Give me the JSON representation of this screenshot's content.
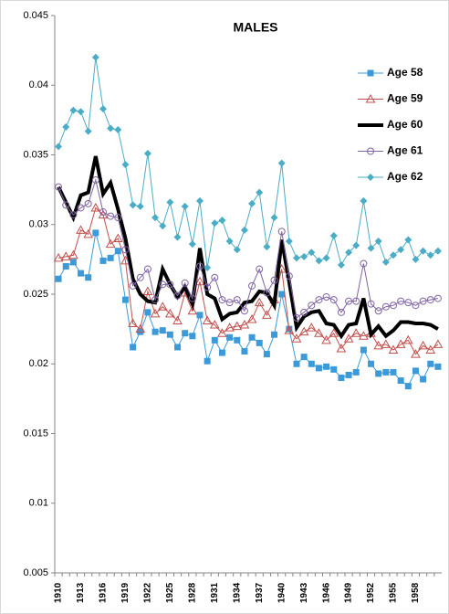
{
  "chart_data": {
    "type": "line",
    "title": "MALES",
    "categories": [
      "1910",
      null,
      null,
      "1913",
      null,
      null,
      "1916",
      null,
      null,
      "1919",
      null,
      null,
      "1922",
      null,
      null,
      "1925",
      null,
      null,
      "1928",
      null,
      null,
      "1931",
      null,
      null,
      "1934",
      null,
      null,
      "1937",
      null,
      null,
      "1940",
      null,
      null,
      "1943",
      null,
      null,
      "1946",
      null,
      null,
      "1949",
      null,
      null,
      "1952",
      null,
      null,
      "1955",
      null,
      null,
      "1958",
      null,
      null,
      null
    ],
    "ylim": [
      0.005,
      0.045
    ],
    "yticks": [
      0.005,
      0.01,
      0.015,
      0.02,
      0.025,
      0.03,
      0.035,
      0.04,
      0.045
    ],
    "series": [
      {
        "name": "Age 58",
        "color": "#3c9ad8",
        "marker": "square",
        "line_width": 1,
        "values": [
          0.0261,
          0.027,
          0.0273,
          0.0265,
          0.0262,
          0.0294,
          0.0274,
          0.0276,
          0.0281,
          0.0246,
          0.0212,
          0.0223,
          0.0237,
          0.0223,
          0.0224,
          0.0221,
          0.0212,
          0.0222,
          0.022,
          0.0235,
          0.0202,
          0.0217,
          0.0208,
          0.0219,
          0.0217,
          0.0209,
          0.0219,
          0.0215,
          0.0207,
          0.0221,
          0.025,
          0.0225,
          0.02,
          0.0205,
          0.02,
          0.0197,
          0.0198,
          0.0196,
          0.019,
          0.0192,
          0.0194,
          0.021,
          0.02,
          0.0193,
          0.0194,
          0.0194,
          0.0188,
          0.0184,
          0.0195,
          0.0189,
          0.02,
          0.0198
        ]
      },
      {
        "name": "Age 59",
        "color": "#c0504d",
        "marker": "triangle",
        "line_width": 1,
        "values": [
          0.0276,
          0.0277,
          0.0278,
          0.0296,
          0.0293,
          0.0312,
          0.0307,
          0.0286,
          0.029,
          0.0274,
          0.0229,
          0.0225,
          0.0252,
          0.0236,
          0.0241,
          0.0236,
          0.0231,
          0.0251,
          0.0238,
          0.0259,
          0.0231,
          0.0228,
          0.0222,
          0.0226,
          0.0227,
          0.0228,
          0.0232,
          0.0244,
          0.0235,
          0.0246,
          0.0268,
          0.0224,
          0.0218,
          0.0223,
          0.0226,
          0.0222,
          0.0217,
          0.0222,
          0.0211,
          0.0218,
          0.0222,
          0.022,
          0.0222,
          0.0213,
          0.0214,
          0.021,
          0.0214,
          0.0217,
          0.0207,
          0.0213,
          0.021,
          0.0214
        ]
      },
      {
        "name": "Age 60",
        "color": "#000000",
        "marker": "none",
        "line_width": 4,
        "values": [
          0.0327,
          0.0316,
          0.0305,
          0.0321,
          0.0323,
          0.0349,
          0.0322,
          0.033,
          0.0311,
          0.029,
          0.0261,
          0.025,
          0.0245,
          0.0244,
          0.0268,
          0.0257,
          0.0248,
          0.0255,
          0.0243,
          0.0283,
          0.025,
          0.0247,
          0.0232,
          0.0236,
          0.0237,
          0.0244,
          0.0245,
          0.0252,
          0.0251,
          0.0242,
          0.0289,
          0.0259,
          0.0226,
          0.0234,
          0.0237,
          0.0238,
          0.0229,
          0.0228,
          0.022,
          0.0228,
          0.0229,
          0.0247,
          0.0221,
          0.0227,
          0.022,
          0.0224,
          0.023,
          0.023,
          0.0229,
          0.0229,
          0.0228,
          0.0225
        ]
      },
      {
        "name": "Age 61",
        "color": "#8064a2",
        "marker": "circle",
        "line_width": 1,
        "values": [
          0.0327,
          0.0314,
          0.0307,
          0.0312,
          0.0315,
          0.0332,
          0.0309,
          0.0306,
          0.0305,
          0.0282,
          0.0256,
          0.0262,
          0.0268,
          0.0246,
          0.0257,
          0.0257,
          0.0249,
          0.0258,
          0.0247,
          0.027,
          0.0255,
          0.0262,
          0.0246,
          0.0244,
          0.0246,
          0.0238,
          0.0256,
          0.0268,
          0.0251,
          0.026,
          0.0295,
          0.0263,
          0.0233,
          0.0237,
          0.0242,
          0.0246,
          0.0248,
          0.0246,
          0.0237,
          0.0245,
          0.0245,
          0.0272,
          0.0243,
          0.0238,
          0.0241,
          0.0242,
          0.0245,
          0.0244,
          0.0242,
          0.0245,
          0.0246,
          0.0247
        ]
      },
      {
        "name": "Age 62",
        "color": "#4bacc6",
        "marker": "diamond",
        "line_width": 1,
        "values": [
          0.0356,
          0.037,
          0.0382,
          0.0381,
          0.0367,
          0.042,
          0.0383,
          0.0369,
          0.0368,
          0.0343,
          0.0314,
          0.0313,
          0.0351,
          0.0305,
          0.0299,
          0.0316,
          0.0291,
          0.0313,
          0.0286,
          0.0317,
          0.0269,
          0.0301,
          0.0303,
          0.0288,
          0.0282,
          0.0296,
          0.0315,
          0.0323,
          0.0284,
          0.0305,
          0.0344,
          0.0288,
          0.0276,
          0.0277,
          0.028,
          0.0274,
          0.0276,
          0.0292,
          0.0271,
          0.028,
          0.0285,
          0.0317,
          0.0283,
          0.0288,
          0.0273,
          0.0278,
          0.0282,
          0.0289,
          0.0275,
          0.0281,
          0.0278,
          0.0281
        ]
      }
    ]
  }
}
